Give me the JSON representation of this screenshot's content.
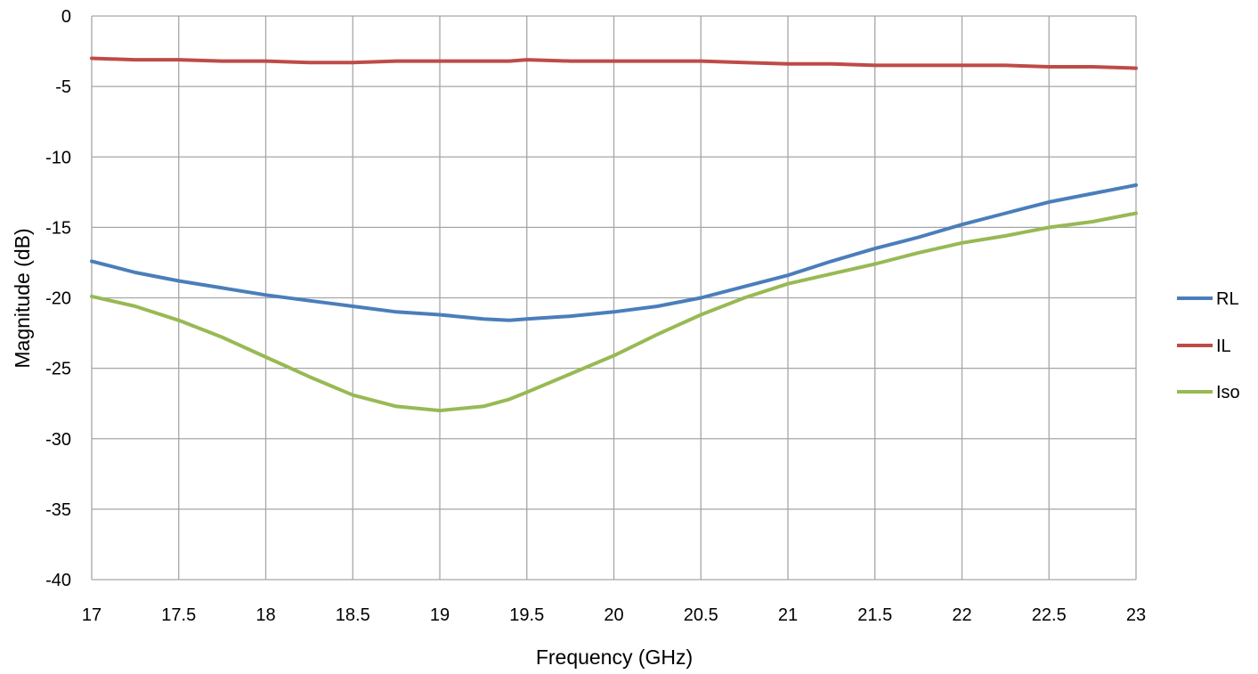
{
  "chart_data": {
    "type": "line",
    "title": "",
    "xlabel": "Frequency (GHz)",
    "ylabel": "Magnitude (dB)",
    "xlim": [
      17,
      23
    ],
    "ylim": [
      -40,
      0
    ],
    "x_ticks": [
      "17",
      "17.5",
      "18",
      "18.5",
      "19",
      "19.5",
      "20",
      "20.5",
      "21",
      "21.5",
      "22",
      "22.5",
      "23"
    ],
    "y_ticks": [
      "0",
      "-5",
      "-10",
      "-15",
      "-20",
      "-25",
      "-30",
      "-35",
      "-40"
    ],
    "grid": true,
    "legend_position": "right",
    "x": [
      17,
      17.25,
      17.5,
      17.75,
      18,
      18.25,
      18.5,
      18.75,
      19,
      19.25,
      19.4,
      19.5,
      19.75,
      20,
      20.25,
      20.5,
      20.75,
      21,
      21.25,
      21.5,
      21.75,
      22,
      22.25,
      22.5,
      22.75,
      23
    ],
    "series": [
      {
        "name": "RL",
        "color": "#4a7ebb",
        "values": [
          -17.4,
          -18.2,
          -18.8,
          -19.3,
          -19.8,
          -20.2,
          -20.6,
          -21.0,
          -21.2,
          -21.5,
          -21.6,
          -21.5,
          -21.3,
          -21.0,
          -20.6,
          -20.0,
          -19.2,
          -18.4,
          -17.4,
          -16.5,
          -15.7,
          -14.8,
          -14.0,
          -13.2,
          -12.6,
          -12.0
        ]
      },
      {
        "name": "IL",
        "color": "#be4b48",
        "values": [
          -3.0,
          -3.1,
          -3.1,
          -3.2,
          -3.2,
          -3.3,
          -3.3,
          -3.2,
          -3.2,
          -3.2,
          -3.2,
          -3.1,
          -3.2,
          -3.2,
          -3.2,
          -3.2,
          -3.3,
          -3.4,
          -3.4,
          -3.5,
          -3.5,
          -3.5,
          -3.5,
          -3.6,
          -3.6,
          -3.7
        ]
      },
      {
        "name": "Iso",
        "color": "#98b954",
        "values": [
          -19.9,
          -20.6,
          -21.6,
          -22.8,
          -24.2,
          -25.6,
          -26.9,
          -27.7,
          -28.0,
          -27.7,
          -27.2,
          -26.7,
          -25.4,
          -24.1,
          -22.6,
          -21.2,
          -20.0,
          -19.0,
          -18.3,
          -17.6,
          -16.8,
          -16.1,
          -15.6,
          -15.0,
          -14.6,
          -14.0
        ]
      }
    ]
  }
}
